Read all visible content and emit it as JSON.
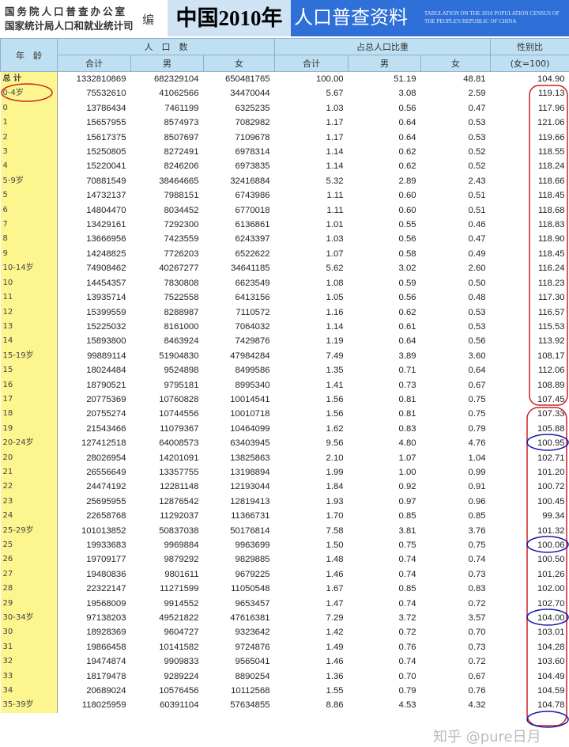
{
  "header": {
    "org_line1": "国务院人口普查办公室",
    "org_line2": "国家统计局人口和就业统计司",
    "edit": "编",
    "title_year": "中国2010年",
    "title_main": "人口普查资料",
    "title_en": "TABULATION ON THE 2010 POPULATION CENSUS OF THE PEOPLE'S REPUBLIC OF CHINA"
  },
  "columns": {
    "age": "年　龄",
    "population": "人　口　数",
    "share": "占总人口比重",
    "sex_ratio": "性别比",
    "sex_ratio_note": "(女=100)",
    "total": "合计",
    "male": "男",
    "female": "女"
  },
  "rows": [
    [
      "总 计",
      "1332810869",
      "682329104",
      "650481765",
      "100.00",
      "51.19",
      "48.81",
      "104.90"
    ],
    [
      "0-4岁",
      "75532610",
      "41062566",
      "34470044",
      "5.67",
      "3.08",
      "2.59",
      "119.13"
    ],
    [
      "0",
      "13786434",
      "7461199",
      "6325235",
      "1.03",
      "0.56",
      "0.47",
      "117.96"
    ],
    [
      "1",
      "15657955",
      "8574973",
      "7082982",
      "1.17",
      "0.64",
      "0.53",
      "121.06"
    ],
    [
      "2",
      "15617375",
      "8507697",
      "7109678",
      "1.17",
      "0.64",
      "0.53",
      "119.66"
    ],
    [
      "3",
      "15250805",
      "8272491",
      "6978314",
      "1.14",
      "0.62",
      "0.52",
      "118.55"
    ],
    [
      "4",
      "15220041",
      "8246206",
      "6973835",
      "1.14",
      "0.62",
      "0.52",
      "118.24"
    ],
    [
      "5-9岁",
      "70881549",
      "38464665",
      "32416884",
      "5.32",
      "2.89",
      "2.43",
      "118.66"
    ],
    [
      "5",
      "14732137",
      "7988151",
      "6743986",
      "1.11",
      "0.60",
      "0.51",
      "118.45"
    ],
    [
      "6",
      "14804470",
      "8034452",
      "6770018",
      "1.11",
      "0.60",
      "0.51",
      "118.68"
    ],
    [
      "7",
      "13429161",
      "7292300",
      "6136861",
      "1.01",
      "0.55",
      "0.46",
      "118.83"
    ],
    [
      "8",
      "13666956",
      "7423559",
      "6243397",
      "1.03",
      "0.56",
      "0.47",
      "118.90"
    ],
    [
      "9",
      "14248825",
      "7726203",
      "6522622",
      "1.07",
      "0.58",
      "0.49",
      "118.45"
    ],
    [
      "10-14岁",
      "74908462",
      "40267277",
      "34641185",
      "5.62",
      "3.02",
      "2.60",
      "116.24"
    ],
    [
      "10",
      "14454357",
      "7830808",
      "6623549",
      "1.08",
      "0.59",
      "0.50",
      "118.23"
    ],
    [
      "11",
      "13935714",
      "7522558",
      "6413156",
      "1.05",
      "0.56",
      "0.48",
      "117.30"
    ],
    [
      "12",
      "15399559",
      "8288987",
      "7110572",
      "1.16",
      "0.62",
      "0.53",
      "116.57"
    ],
    [
      "13",
      "15225032",
      "8161000",
      "7064032",
      "1.14",
      "0.61",
      "0.53",
      "115.53"
    ],
    [
      "14",
      "15893800",
      "8463924",
      "7429876",
      "1.19",
      "0.64",
      "0.56",
      "113.92"
    ],
    [
      "15-19岁",
      "99889114",
      "51904830",
      "47984284",
      "7.49",
      "3.89",
      "3.60",
      "108.17"
    ],
    [
      "15",
      "18024484",
      "9524898",
      "8499586",
      "1.35",
      "0.71",
      "0.64",
      "112.06"
    ],
    [
      "16",
      "18790521",
      "9795181",
      "8995340",
      "1.41",
      "0.73",
      "0.67",
      "108.89"
    ],
    [
      "17",
      "20775369",
      "10760828",
      "10014541",
      "1.56",
      "0.81",
      "0.75",
      "107.45"
    ],
    [
      "18",
      "20755274",
      "10744556",
      "10010718",
      "1.56",
      "0.81",
      "0.75",
      "107.33"
    ],
    [
      "19",
      "21543466",
      "11079367",
      "10464099",
      "1.62",
      "0.83",
      "0.79",
      "105.88"
    ],
    [
      "20-24岁",
      "127412518",
      "64008573",
      "63403945",
      "9.56",
      "4.80",
      "4.76",
      "100.95"
    ],
    [
      "20",
      "28026954",
      "14201091",
      "13825863",
      "2.10",
      "1.07",
      "1.04",
      "102.71"
    ],
    [
      "21",
      "26556649",
      "13357755",
      "13198894",
      "1.99",
      "1.00",
      "0.99",
      "101.20"
    ],
    [
      "22",
      "24474192",
      "12281148",
      "12193044",
      "1.84",
      "0.92",
      "0.91",
      "100.72"
    ],
    [
      "23",
      "25695955",
      "12876542",
      "12819413",
      "1.93",
      "0.97",
      "0.96",
      "100.45"
    ],
    [
      "24",
      "22658768",
      "11292037",
      "11366731",
      "1.70",
      "0.85",
      "0.85",
      "99.34"
    ],
    [
      "25-29岁",
      "101013852",
      "50837038",
      "50176814",
      "7.58",
      "3.81",
      "3.76",
      "101.32"
    ],
    [
      "25",
      "19933683",
      "9969884",
      "9963699",
      "1.50",
      "0.75",
      "0.75",
      "100.06"
    ],
    [
      "26",
      "19709177",
      "9879292",
      "9829885",
      "1.48",
      "0.74",
      "0.74",
      "100.50"
    ],
    [
      "27",
      "19480836",
      "9801611",
      "9679225",
      "1.46",
      "0.74",
      "0.73",
      "101.26"
    ],
    [
      "28",
      "22322147",
      "11271599",
      "11050548",
      "1.67",
      "0.85",
      "0.83",
      "102.00"
    ],
    [
      "29",
      "19568009",
      "9914552",
      "9653457",
      "1.47",
      "0.74",
      "0.72",
      "102.70"
    ],
    [
      "30-34岁",
      "97138203",
      "49521822",
      "47616381",
      "7.29",
      "3.72",
      "3.57",
      "104.00"
    ],
    [
      "30",
      "18928369",
      "9604727",
      "9323642",
      "1.42",
      "0.72",
      "0.70",
      "103.01"
    ],
    [
      "31",
      "19866458",
      "10141582",
      "9724876",
      "1.49",
      "0.76",
      "0.73",
      "104.28"
    ],
    [
      "32",
      "19474874",
      "9909833",
      "9565041",
      "1.46",
      "0.74",
      "0.72",
      "103.60"
    ],
    [
      "33",
      "18179478",
      "9289224",
      "8890254",
      "1.36",
      "0.70",
      "0.67",
      "104.49"
    ],
    [
      "34",
      "20689024",
      "10576456",
      "10112568",
      "1.55",
      "0.79",
      "0.76",
      "104.59"
    ],
    [
      "35-39岁",
      "118025959",
      "60391104",
      "57634855",
      "8.86",
      "4.53",
      "4.32",
      "104.78"
    ]
  ],
  "watermark": "知乎 @pure日月",
  "colors": {
    "age_column": "#fdf58e",
    "header": "#bfe0f2",
    "banner": "#2e6fd8",
    "annotation_red": "#cc2222",
    "annotation_blue": "#1a1aa8"
  }
}
